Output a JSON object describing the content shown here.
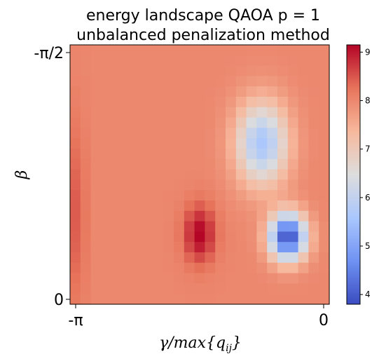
{
  "chart_data": {
    "type": "heatmap",
    "title_lines": [
      "energy landscape QAOA p = 1",
      "unbalanced penalization method"
    ],
    "xlabel": {
      "main": "γ/max{q",
      "sub": "ij",
      "end": "}"
    },
    "ylabel": "β",
    "x_tick_labels": [
      "-π",
      "0"
    ],
    "y_tick_labels": [
      "-π/2",
      "0"
    ],
    "colorbar_ticks": [
      4,
      5,
      6,
      7,
      8,
      9
    ],
    "colorbar_tick_labels": [
      "4",
      "5",
      "6",
      "7",
      "8",
      "9"
    ],
    "value_range": [
      3.8,
      9.15
    ],
    "colormap": "coolwarm",
    "colormap_stops": [
      "#3b4cc0",
      "#6f92f3",
      "#aac7fd",
      "#dddddd",
      "#f7b89c",
      "#e7745b",
      "#b40426"
    ],
    "grid_size": [
      25,
      25
    ],
    "base_value": 8.0,
    "features": [
      {
        "kind": "minimum",
        "gamma_frac": 0.84,
        "beta_frac": 0.26,
        "depth": 4.2,
        "width_gamma": 0.07,
        "width_beta": 0.09
      },
      {
        "kind": "basin",
        "gamma_frac": 0.74,
        "beta_frac": 0.62,
        "depth": 2.4,
        "width_gamma": 0.1,
        "width_beta": 0.16
      },
      {
        "kind": "maximum",
        "gamma_frac": 0.5,
        "beta_frac": 0.27,
        "height": 1.15,
        "width_gamma": 0.06,
        "width_beta": 0.11
      },
      {
        "kind": "edge-ridge",
        "gamma_frac": 0.03,
        "beta_frac": 0.35,
        "height": 0.5
      }
    ]
  }
}
